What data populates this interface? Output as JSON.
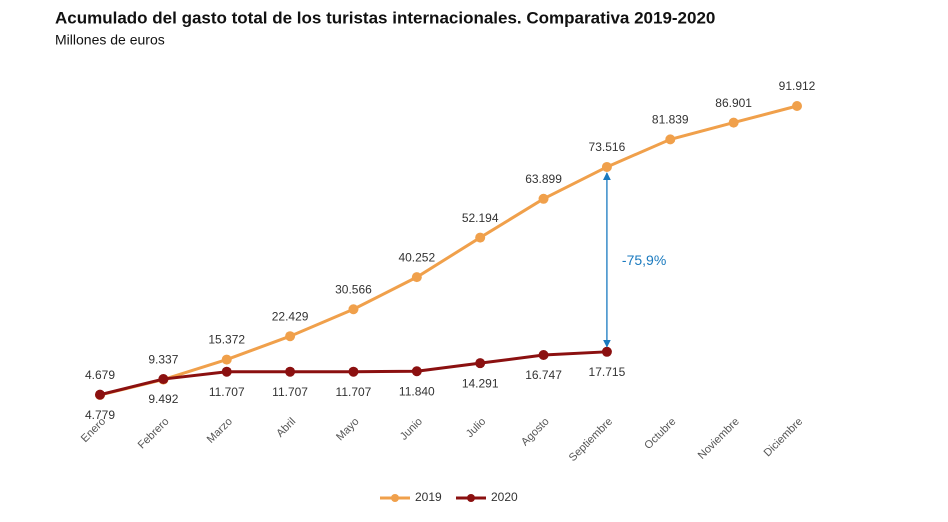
{
  "chart_data": {
    "type": "line",
    "title": "Acumulado del gasto total de los turistas internacionales. Comparativa 2019-2020",
    "subtitle": "Millones de euros",
    "categories": [
      "Enero",
      "Febrero",
      "Marzo",
      "Abril",
      "Mayo",
      "Junio",
      "Julio",
      "Agosto",
      "Septiembre",
      "Octubre",
      "Noviembre",
      "Diciembre"
    ],
    "series": [
      {
        "name": "2019",
        "color": "#f0a04b",
        "values": [
          4679,
          9337,
          15372,
          22429,
          30566,
          40252,
          52194,
          63899,
          73516,
          81839,
          86901,
          91912
        ],
        "value_labels": [
          "4.679",
          "9.337",
          "15.372",
          "22.429",
          "30.566",
          "40.252",
          "52.194",
          "63.899",
          "73.516",
          "81.839",
          "86.901",
          "91.912"
        ]
      },
      {
        "name": "2020",
        "color": "#8b1010",
        "values": [
          4779,
          9492,
          11707,
          11707,
          11707,
          11840,
          14291,
          16747,
          17715,
          null,
          null,
          null
        ],
        "value_labels": [
          "4.779",
          "9.492",
          "11.707",
          "11.707",
          "11.707",
          "11.840",
          "14.291",
          "16.747",
          "17.715",
          null,
          null,
          null
        ]
      }
    ],
    "annotation": "-75,9%",
    "legend": "bottom"
  }
}
